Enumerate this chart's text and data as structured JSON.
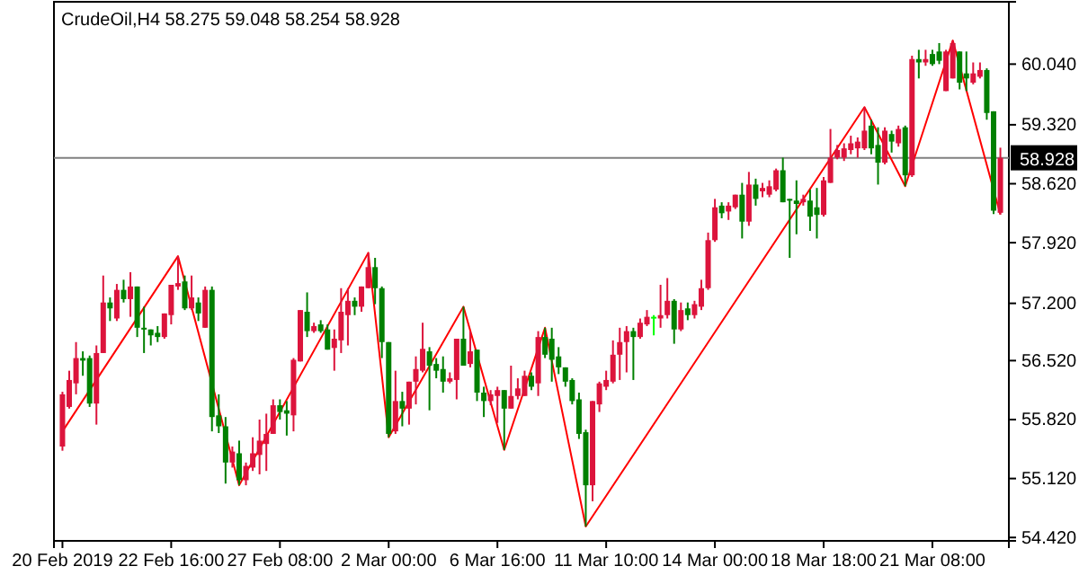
{
  "chart_data": {
    "type": "candlestick",
    "title": "CrudeOil,H4 58.275 59.048 58.254 58.928",
    "ylim": [
      54.38,
      60.78
    ],
    "categories": [
      "20 Feb 2019",
      null,
      null,
      null,
      null,
      null,
      null,
      null,
      null,
      null,
      null,
      null,
      null,
      null,
      null,
      null,
      "22 Feb 16:00",
      null,
      null,
      null,
      null,
      null,
      null,
      null,
      null,
      null,
      null,
      null,
      null,
      null,
      null,
      null,
      "27 Feb 08:00",
      null,
      null,
      null,
      null,
      null,
      null,
      null,
      null,
      null,
      null,
      null,
      null,
      null,
      null,
      null,
      "2 Mar 00:00",
      null,
      null,
      null,
      null,
      null,
      null,
      null,
      null,
      null,
      null,
      null,
      null,
      null,
      null,
      null,
      "6 Mar 16:00",
      null,
      null,
      null,
      null,
      null,
      null,
      null,
      null,
      null,
      null,
      null,
      null,
      null,
      null,
      null,
      "11 Mar 10:00",
      null,
      null,
      null,
      null,
      null,
      null,
      null,
      null,
      null,
      null,
      null,
      null,
      null,
      null,
      null,
      "14 Mar 00:00",
      null,
      null,
      null,
      null,
      null,
      null,
      null,
      null,
      null,
      null,
      null,
      null,
      null,
      null,
      null,
      "18 Mar 18:00",
      null,
      null,
      null,
      null,
      null,
      null,
      null,
      null,
      null,
      null,
      null,
      null,
      null,
      null,
      null,
      "21 Mar 08:00",
      null,
      null,
      null,
      null,
      null,
      null,
      null,
      null,
      null,
      null
    ],
    "yticks": [
      {
        "value": 60.04,
        "label": "60.040"
      },
      {
        "value": 59.32,
        "label": "59.320"
      },
      {
        "value": 58.62,
        "label": "58.620"
      },
      {
        "value": 57.92,
        "label": "57.920"
      },
      {
        "value": 57.2,
        "label": "57.200"
      },
      {
        "value": 56.52,
        "label": "56.520"
      },
      {
        "value": 55.82,
        "label": "55.820"
      },
      {
        "value": 55.12,
        "label": "55.120"
      },
      {
        "value": 54.42,
        "label": "54.420"
      }
    ],
    "grid": false,
    "ref_lines": [
      {
        "axis": "y",
        "value": 58.928,
        "label": "58.928",
        "color": "#808080"
      }
    ],
    "series": [
      {
        "type": "line",
        "color": "#ff0000",
        "values": [
          55.68,
          null,
          null,
          null,
          null,
          null,
          null,
          null,
          null,
          null,
          null,
          null,
          null,
          null,
          null,
          null,
          null,
          57.76,
          null,
          null,
          null,
          null,
          null,
          null,
          null,
          null,
          55.04,
          null,
          null,
          null,
          null,
          null,
          null,
          null,
          null,
          null,
          null,
          null,
          null,
          null,
          null,
          null,
          null,
          null,
          null,
          57.8,
          null,
          null,
          55.61,
          null,
          null,
          null,
          null,
          null,
          null,
          null,
          null,
          null,
          null,
          57.16,
          null,
          null,
          null,
          null,
          null,
          55.46,
          null,
          null,
          null,
          null,
          null,
          56.91,
          null,
          null,
          null,
          null,
          null,
          54.55,
          null,
          null,
          null,
          null,
          null,
          null,
          null,
          null,
          null,
          null,
          null,
          null,
          null,
          null,
          null,
          null,
          null,
          null,
          null,
          null,
          null,
          null,
          null,
          null,
          null,
          null,
          null,
          null,
          null,
          null,
          null,
          null,
          null,
          null,
          null,
          null,
          null,
          null,
          null,
          null,
          59.53,
          null,
          null,
          null,
          null,
          null,
          58.59,
          null,
          null,
          null,
          null,
          null,
          null,
          60.32,
          null,
          null,
          null,
          null,
          null,
          null,
          58.254
        ]
      },
      {
        "colors": [
          "#dc143c",
          "#dc143c",
          "#dc143c",
          "#008000",
          "#008000",
          "#dc143c",
          "#dc143c",
          "#008000",
          "#dc143c",
          "#008000",
          "#dc143c",
          "#008000",
          "#008000",
          "#008000",
          "#008000",
          "#dc143c",
          "#dc143c",
          "#dc143c",
          "#008000",
          "#dc143c",
          "#008000",
          "#dc143c",
          "#008000",
          "#008000",
          "#008000",
          "#dc143c",
          "#008000",
          "#dc143c",
          "#dc143c",
          "#dc143c",
          "#dc143c",
          "#dc143c",
          "#008000",
          "#008000",
          "#dc143c",
          "#dc143c",
          "#008000",
          "#dc143c",
          "#008000",
          "#008000",
          "#dc143c",
          "#dc143c",
          "#dc143c",
          "#008000",
          "#dc143c",
          "#dc143c",
          "#008000",
          "#008000",
          "#008000",
          "#dc143c",
          "#008000",
          "#dc143c",
          "#dc143c",
          "#dc143c",
          "#008000",
          "#008000",
          "#008000",
          "#dc143c",
          "#dc143c",
          "#008000",
          "#dc143c",
          "#008000",
          "#008000",
          "#dc143c",
          "#dc143c",
          "#008000",
          "#dc143c",
          "#dc143c",
          "#dc143c",
          "#008000",
          "#dc143c",
          "#008000",
          "#008000",
          "#008000",
          "#008000",
          "#008000",
          "#008000",
          "#008000",
          "#dc143c",
          "#dc143c",
          "#dc143c",
          "#dc143c",
          "#dc143c",
          "#dc143c",
          "#008000",
          "#dc143c",
          "#dc143c",
          "#00ff00",
          "#dc143c",
          "#dc143c",
          "#008000",
          "#dc143c",
          "#008000",
          "#dc143c",
          "#dc143c",
          "#dc143c",
          "#dc143c",
          "#008000",
          "#dc143c",
          "#dc143c",
          "#008000",
          "#dc143c",
          "#008000",
          "#dc143c",
          "#dc143c",
          "#dc143c",
          "#008000",
          "#008000",
          "#008000",
          "#dc143c",
          "#008000",
          "#008000",
          "#dc143c",
          "#dc143c",
          "#dc143c",
          "#dc143c",
          "#dc143c",
          "#dc143c",
          "#dc143c",
          "#008000",
          "#008000",
          "#dc143c",
          "#008000",
          "#dc143c",
          "#008000",
          "#dc143c",
          "#008000",
          "#dc143c",
          "#008000",
          "#008000",
          "#dc143c",
          "#dc143c",
          "#008000",
          "#008000",
          "#dc143c",
          "#dc143c",
          "#008000",
          "#008000",
          "#dc143c"
        ],
        "ohlc": [
          [
            55.5,
            56.15,
            55.45,
            56.12
          ],
          [
            55.97,
            56.4,
            55.95,
            56.29
          ],
          [
            56.25,
            56.74,
            56.12,
            56.55
          ],
          [
            56.55,
            56.63,
            56.34,
            56.52
          ],
          [
            56.55,
            56.58,
            55.97,
            56.01
          ],
          [
            56.01,
            56.7,
            55.76,
            56.61
          ],
          [
            56.61,
            57.53,
            56.61,
            57.21
          ],
          [
            57.21,
            57.27,
            56.99,
            57.14
          ],
          [
            57.02,
            57.43,
            56.99,
            57.36
          ],
          [
            57.36,
            57.48,
            57.21,
            57.25
          ],
          [
            57.25,
            57.57,
            57.04,
            57.4
          ],
          [
            57.4,
            57.4,
            56.8,
            56.91
          ],
          [
            56.91,
            57.16,
            56.61,
            56.89
          ],
          [
            56.89,
            56.89,
            56.7,
            56.82
          ],
          [
            56.85,
            56.93,
            56.74,
            56.8
          ],
          [
            56.8,
            57.08,
            56.78,
            57.08
          ],
          [
            57.06,
            57.42,
            56.95,
            57.42
          ],
          [
            57.4,
            57.76,
            57.36,
            57.44
          ],
          [
            57.46,
            57.53,
            57.12,
            57.14
          ],
          [
            57.14,
            57.53,
            57.12,
            57.27
          ],
          [
            57.21,
            57.27,
            56.99,
            57.08
          ],
          [
            56.91,
            57.4,
            56.91,
            57.36
          ],
          [
            57.36,
            57.4,
            55.68,
            55.85
          ],
          [
            55.87,
            56.12,
            55.66,
            55.74
          ],
          [
            55.74,
            55.85,
            55.06,
            55.31
          ],
          [
            55.31,
            55.5,
            55.25,
            55.44
          ],
          [
            55.42,
            55.57,
            55.04,
            55.1
          ],
          [
            55.1,
            55.31,
            55.04,
            55.27
          ],
          [
            55.25,
            55.61,
            55.21,
            55.42
          ],
          [
            55.4,
            55.82,
            55.17,
            55.57
          ],
          [
            55.53,
            55.89,
            55.21,
            55.65
          ],
          [
            55.65,
            56.06,
            55.65,
            55.99
          ],
          [
            55.99,
            56.06,
            55.82,
            55.91
          ],
          [
            55.93,
            56.04,
            55.63,
            55.89
          ],
          [
            55.87,
            56.55,
            55.68,
            56.53
          ],
          [
            56.51,
            57.12,
            56.51,
            57.12
          ],
          [
            57.1,
            57.33,
            56.8,
            56.87
          ],
          [
            56.87,
            56.97,
            56.85,
            56.93
          ],
          [
            56.95,
            57.0,
            56.85,
            56.87
          ],
          [
            56.89,
            56.95,
            56.65,
            56.65
          ],
          [
            56.67,
            56.89,
            56.4,
            56.78
          ],
          [
            56.76,
            57.38,
            56.61,
            57.1
          ],
          [
            57.06,
            57.38,
            56.7,
            57.23
          ],
          [
            57.23,
            57.27,
            57.06,
            57.16
          ],
          [
            57.16,
            57.4,
            57.1,
            57.4
          ],
          [
            57.38,
            57.8,
            57.38,
            57.63
          ],
          [
            57.63,
            57.74,
            57.19,
            57.38
          ],
          [
            57.38,
            57.4,
            56.55,
            56.74
          ],
          [
            56.74,
            56.74,
            55.61,
            55.65
          ],
          [
            55.68,
            56.4,
            55.65,
            56.04
          ],
          [
            56.04,
            56.15,
            55.74,
            55.95
          ],
          [
            55.95,
            56.27,
            55.76,
            56.27
          ],
          [
            56.27,
            56.57,
            56.0,
            56.42
          ],
          [
            56.4,
            56.97,
            56.38,
            56.66
          ],
          [
            56.63,
            56.68,
            55.93,
            56.46
          ],
          [
            56.48,
            56.55,
            56.31,
            56.4
          ],
          [
            56.42,
            56.57,
            56.14,
            56.27
          ],
          [
            56.27,
            56.38,
            56.25,
            56.31
          ],
          [
            56.29,
            56.78,
            56.06,
            56.78
          ],
          [
            56.78,
            57.16,
            56.46,
            56.46
          ],
          [
            56.48,
            56.87,
            56.44,
            56.63
          ],
          [
            56.65,
            56.65,
            56.04,
            56.14
          ],
          [
            56.14,
            56.21,
            55.85,
            56.04
          ],
          [
            56.04,
            56.17,
            55.99,
            56.12
          ],
          [
            56.1,
            56.21,
            55.78,
            56.17
          ],
          [
            56.17,
            56.17,
            55.46,
            55.95
          ],
          [
            55.95,
            56.46,
            55.95,
            56.1
          ],
          [
            56.1,
            56.31,
            56.06,
            56.19
          ],
          [
            56.1,
            56.4,
            56.1,
            56.34
          ],
          [
            56.34,
            56.38,
            56.17,
            56.21
          ],
          [
            56.25,
            56.87,
            56.1,
            56.8
          ],
          [
            56.8,
            56.91,
            56.55,
            56.59
          ],
          [
            56.78,
            56.91,
            56.27,
            56.53
          ],
          [
            56.57,
            56.68,
            56.36,
            56.44
          ],
          [
            56.44,
            56.44,
            56.21,
            56.27
          ],
          [
            56.29,
            56.31,
            56.0,
            56.04
          ],
          [
            56.06,
            56.14,
            55.59,
            55.65
          ],
          [
            55.67,
            55.7,
            54.55,
            55.04
          ],
          [
            55.04,
            56.04,
            54.85,
            56.04
          ],
          [
            56.0,
            56.27,
            55.91,
            56.25
          ],
          [
            56.21,
            56.4,
            56.17,
            56.29
          ],
          [
            56.27,
            56.76,
            56.25,
            56.59
          ],
          [
            56.59,
            56.91,
            56.29,
            56.74
          ],
          [
            56.74,
            56.93,
            56.38,
            56.87
          ],
          [
            56.87,
            56.91,
            56.29,
            56.8
          ],
          [
            56.8,
            57.02,
            56.78,
            56.97
          ],
          [
            56.95,
            57.12,
            56.93,
            57.04
          ],
          [
            57.04,
            57.06,
            56.82,
            57.04
          ],
          [
            57.02,
            57.42,
            56.91,
            57.06
          ],
          [
            57.06,
            57.5,
            57.02,
            57.23
          ],
          [
            57.23,
            57.25,
            56.72,
            56.89
          ],
          [
            56.89,
            57.21,
            56.87,
            57.12
          ],
          [
            57.14,
            57.21,
            57.0,
            57.06
          ],
          [
            57.06,
            57.23,
            57.02,
            57.19
          ],
          [
            57.16,
            57.48,
            57.12,
            57.38
          ],
          [
            57.38,
            58.04,
            57.36,
            57.95
          ],
          [
            57.95,
            58.44,
            57.93,
            58.34
          ],
          [
            58.36,
            58.4,
            58.21,
            58.27
          ],
          [
            58.29,
            58.4,
            58.19,
            58.36
          ],
          [
            58.34,
            58.49,
            58.32,
            58.49
          ],
          [
            58.49,
            58.63,
            57.97,
            58.17
          ],
          [
            58.17,
            58.76,
            58.12,
            58.61
          ],
          [
            58.61,
            58.68,
            58.36,
            58.44
          ],
          [
            58.53,
            58.63,
            58.46,
            58.57
          ],
          [
            58.49,
            58.66,
            58.46,
            58.59
          ],
          [
            58.55,
            58.8,
            58.53,
            58.78
          ],
          [
            58.78,
            58.93,
            58.4,
            58.4
          ],
          [
            58.44,
            58.44,
            57.74,
            58.42
          ],
          [
            58.42,
            58.66,
            58.02,
            58.38
          ],
          [
            58.4,
            58.49,
            58.36,
            58.44
          ],
          [
            58.42,
            58.55,
            58.06,
            58.23
          ],
          [
            58.34,
            58.57,
            57.97,
            58.25
          ],
          [
            58.25,
            58.7,
            58.23,
            58.66
          ],
          [
            58.63,
            59.27,
            58.63,
            58.93
          ],
          [
            58.93,
            59.08,
            58.91,
            59.02
          ],
          [
            58.93,
            59.1,
            58.89,
            59.04
          ],
          [
            59.02,
            59.19,
            58.97,
            59.1
          ],
          [
            59.04,
            59.17,
            58.93,
            59.12
          ],
          [
            59.04,
            59.53,
            59.02,
            59.25
          ],
          [
            59.31,
            59.38,
            58.97,
            59.04
          ],
          [
            59.08,
            59.29,
            58.61,
            58.87
          ],
          [
            58.87,
            59.29,
            58.85,
            59.25
          ],
          [
            59.21,
            59.25,
            58.99,
            59.12
          ],
          [
            59.1,
            59.31,
            59.06,
            59.27
          ],
          [
            59.29,
            59.31,
            58.59,
            58.72
          ],
          [
            58.72,
            60.14,
            58.7,
            60.1
          ],
          [
            60.1,
            60.21,
            59.87,
            60.06
          ],
          [
            60.06,
            60.21,
            60.02,
            60.1
          ],
          [
            60.16,
            60.21,
            60.02,
            60.04
          ],
          [
            60.19,
            60.29,
            60.04,
            60.08
          ],
          [
            59.72,
            60.21,
            59.72,
            60.19
          ],
          [
            59.87,
            60.32,
            59.87,
            60.29
          ],
          [
            60.19,
            60.19,
            59.74,
            59.82
          ],
          [
            59.93,
            60.19,
            59.72,
            59.87
          ],
          [
            59.82,
            60.06,
            59.8,
            59.93
          ],
          [
            59.89,
            60.06,
            59.87,
            59.97
          ],
          [
            59.97,
            59.99,
            59.38,
            59.46
          ],
          [
            59.48,
            59.48,
            58.26,
            58.3
          ],
          [
            58.275,
            59.048,
            58.254,
            58.928
          ]
        ]
      }
    ]
  }
}
